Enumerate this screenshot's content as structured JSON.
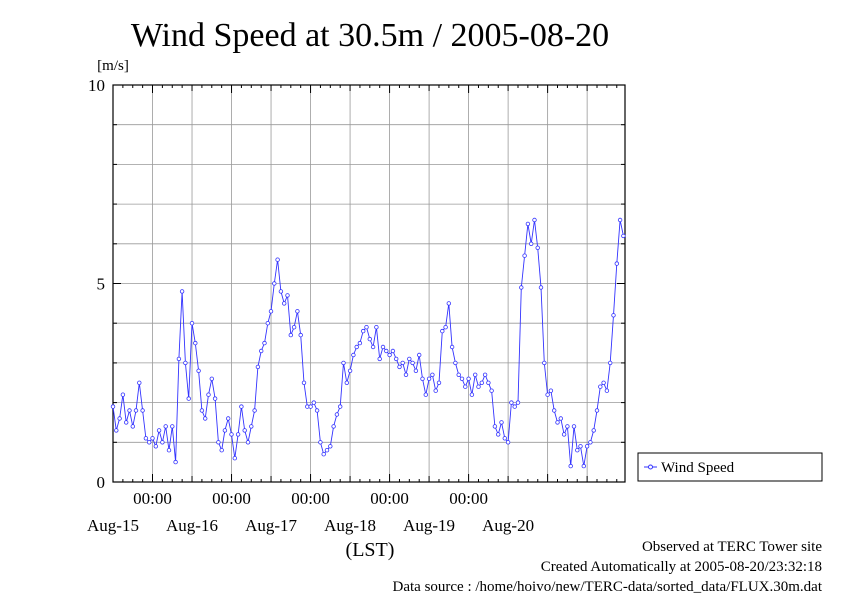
{
  "chart_data": {
    "type": "line",
    "title": "Wind Speed at 30.5m / 2005-08-20",
    "ylabel": "[m/s]",
    "xlabel": "(LST)",
    "ylim": [
      0,
      10
    ],
    "yticks": [
      0,
      5,
      10
    ],
    "x_time_ticks": [
      "00:00",
      "00:00",
      "00:00",
      "00:00",
      "00:00"
    ],
    "x_date_labels": [
      "Aug-15",
      "Aug-16",
      "Aug-17",
      "Aug-18",
      "Aug-19",
      "Aug-20"
    ],
    "xlim": [
      "2005-08-14T12:00",
      "2005-08-20T23:30"
    ],
    "grid": true,
    "legend_position": "right",
    "color": "#3333ff",
    "series": [
      {
        "name": "Wind Speed",
        "x": [
          "2005-08-14T12:00",
          "2005-08-14T13:00",
          "2005-08-14T14:00",
          "2005-08-14T15:00",
          "2005-08-14T16:00",
          "2005-08-14T17:00",
          "2005-08-14T18:00",
          "2005-08-14T19:00",
          "2005-08-14T20:00",
          "2005-08-14T21:00",
          "2005-08-14T22:00",
          "2005-08-14T23:00",
          "2005-08-15T00:00",
          "2005-08-15T01:00",
          "2005-08-15T02:00",
          "2005-08-15T03:00",
          "2005-08-15T04:00",
          "2005-08-15T05:00",
          "2005-08-15T06:00",
          "2005-08-15T07:00",
          "2005-08-15T08:00",
          "2005-08-15T09:00",
          "2005-08-15T10:00",
          "2005-08-15T11:00",
          "2005-08-15T12:00",
          "2005-08-15T13:00",
          "2005-08-15T14:00",
          "2005-08-15T15:00",
          "2005-08-15T16:00",
          "2005-08-15T17:00",
          "2005-08-15T18:00",
          "2005-08-15T19:00",
          "2005-08-15T20:00",
          "2005-08-15T21:00",
          "2005-08-15T22:00",
          "2005-08-15T23:00",
          "2005-08-16T00:00",
          "2005-08-16T01:00",
          "2005-08-16T02:00",
          "2005-08-16T03:00",
          "2005-08-16T04:00",
          "2005-08-16T05:00",
          "2005-08-16T06:00",
          "2005-08-16T07:00",
          "2005-08-16T08:00",
          "2005-08-16T09:00",
          "2005-08-16T10:00",
          "2005-08-16T11:00",
          "2005-08-16T12:00",
          "2005-08-16T13:00",
          "2005-08-16T14:00",
          "2005-08-16T15:00",
          "2005-08-16T16:00",
          "2005-08-16T17:00",
          "2005-08-16T18:00",
          "2005-08-16T19:00",
          "2005-08-16T20:00",
          "2005-08-16T21:00",
          "2005-08-16T22:00",
          "2005-08-16T23:00",
          "2005-08-17T00:00",
          "2005-08-17T01:00",
          "2005-08-17T02:00",
          "2005-08-17T03:00",
          "2005-08-17T04:00",
          "2005-08-17T05:00",
          "2005-08-17T06:00",
          "2005-08-17T07:00",
          "2005-08-17T08:00",
          "2005-08-17T09:00",
          "2005-08-17T10:00",
          "2005-08-17T11:00",
          "2005-08-17T12:00",
          "2005-08-17T13:00",
          "2005-08-17T14:00",
          "2005-08-17T15:00",
          "2005-08-17T16:00",
          "2005-08-17T17:00",
          "2005-08-17T18:00",
          "2005-08-17T19:00",
          "2005-08-17T20:00",
          "2005-08-17T21:00",
          "2005-08-17T22:00",
          "2005-08-17T23:00",
          "2005-08-18T00:00",
          "2005-08-18T01:00",
          "2005-08-18T02:00",
          "2005-08-18T03:00",
          "2005-08-18T04:00",
          "2005-08-18T05:00",
          "2005-08-18T06:00",
          "2005-08-18T07:00",
          "2005-08-18T08:00",
          "2005-08-18T09:00",
          "2005-08-18T10:00",
          "2005-08-18T11:00",
          "2005-08-18T12:00",
          "2005-08-18T13:00",
          "2005-08-18T14:00",
          "2005-08-18T15:00",
          "2005-08-18T16:00",
          "2005-08-18T17:00",
          "2005-08-18T18:00",
          "2005-08-18T19:00",
          "2005-08-18T20:00",
          "2005-08-18T21:00",
          "2005-08-18T22:00",
          "2005-08-18T23:00",
          "2005-08-19T00:00",
          "2005-08-19T01:00",
          "2005-08-19T02:00",
          "2005-08-19T03:00",
          "2005-08-19T04:00",
          "2005-08-19T05:00",
          "2005-08-19T06:00",
          "2005-08-19T07:00",
          "2005-08-19T08:00",
          "2005-08-19T09:00",
          "2005-08-19T10:00",
          "2005-08-19T11:00",
          "2005-08-19T12:00",
          "2005-08-19T13:00",
          "2005-08-19T14:00",
          "2005-08-19T15:00",
          "2005-08-19T16:00",
          "2005-08-19T17:00",
          "2005-08-19T18:00",
          "2005-08-19T19:00",
          "2005-08-19T20:00",
          "2005-08-19T21:00",
          "2005-08-19T22:00",
          "2005-08-19T23:00",
          "2005-08-20T00:00",
          "2005-08-20T01:00",
          "2005-08-20T02:00",
          "2005-08-20T03:00",
          "2005-08-20T04:00",
          "2005-08-20T05:00",
          "2005-08-20T06:00",
          "2005-08-20T07:00",
          "2005-08-20T08:00",
          "2005-08-20T09:00",
          "2005-08-20T10:00",
          "2005-08-20T11:00",
          "2005-08-20T12:00",
          "2005-08-20T13:00",
          "2005-08-20T14:00",
          "2005-08-20T15:00",
          "2005-08-20T16:00",
          "2005-08-20T17:00",
          "2005-08-20T18:00",
          "2005-08-20T19:00",
          "2005-08-20T20:00",
          "2005-08-20T21:00",
          "2005-08-20T22:00",
          "2005-08-20T23:00"
        ],
        "values": [
          1.9,
          1.3,
          1.6,
          2.2,
          1.5,
          1.8,
          1.4,
          1.8,
          2.5,
          1.8,
          1.1,
          1.0,
          1.1,
          0.9,
          1.3,
          1.0,
          1.4,
          0.8,
          1.4,
          0.5,
          3.1,
          4.8,
          3.0,
          2.1,
          4.0,
          3.5,
          2.8,
          1.8,
          1.6,
          2.2,
          2.6,
          2.1,
          1.0,
          0.8,
          1.3,
          1.6,
          1.2,
          0.6,
          1.2,
          1.9,
          1.3,
          1.0,
          1.4,
          1.8,
          2.9,
          3.3,
          3.5,
          4.0,
          4.3,
          5.0,
          5.6,
          4.8,
          4.5,
          4.7,
          3.7,
          3.9,
          4.3,
          3.7,
          2.5,
          1.9,
          1.9,
          2.0,
          1.8,
          1.0,
          0.7,
          0.8,
          0.9,
          1.4,
          1.7,
          1.9,
          3.0,
          2.5,
          2.8,
          3.2,
          3.4,
          3.5,
          3.8,
          3.9,
          3.6,
          3.4,
          3.9,
          3.1,
          3.4,
          3.3,
          3.2,
          3.3,
          3.1,
          2.9,
          3.0,
          2.7,
          3.1,
          3.0,
          2.8,
          3.2,
          2.6,
          2.2,
          2.6,
          2.7,
          2.3,
          2.5,
          3.8,
          3.9,
          4.5,
          3.4,
          3.0,
          2.7,
          2.6,
          2.4,
          2.6,
          2.2,
          2.7,
          2.4,
          2.5,
          2.7,
          2.5,
          2.3,
          1.4,
          1.2,
          1.5,
          1.1,
          1.0,
          2.0,
          1.9,
          2.0,
          4.9,
          5.7,
          6.5,
          6.0,
          6.6,
          5.9,
          4.9,
          3.0,
          2.2,
          2.3,
          1.8,
          1.5,
          1.6,
          1.2,
          1.4,
          0.4,
          1.4,
          0.8,
          0.9,
          0.4,
          0.9,
          1.0,
          1.3,
          1.8,
          2.4,
          2.5,
          2.3,
          3.0,
          4.2,
          5.5,
          6.6,
          6.2
        ]
      }
    ],
    "legend": [
      "Wind Speed"
    ]
  },
  "footer": {
    "site": "Observed at TERC Tower site",
    "created": "Created Automatically at 2005-08-20/23:32:18",
    "source": "Data source : /home/hoivo/new/TERC-data/sorted_data/FLUX.30m.dat"
  }
}
